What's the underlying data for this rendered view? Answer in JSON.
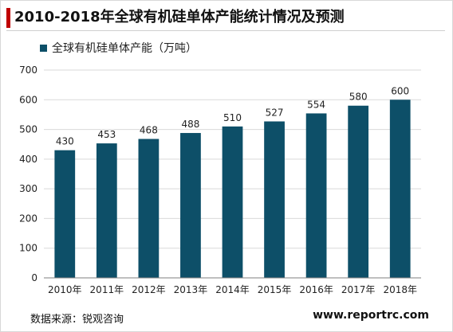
{
  "chart_data": {
    "type": "bar",
    "title": "2010-2018年全球有机硅单体产能统计情况及预测",
    "categories": [
      "2010年",
      "2011年",
      "2012年",
      "2013年",
      "2014年",
      "2015年",
      "2016年",
      "2017年",
      "2018年"
    ],
    "series": [
      {
        "name": "全球有机硅单体产能（万吨）",
        "values": [
          430,
          453,
          468,
          488,
          510,
          527,
          554,
          580,
          600
        ]
      }
    ],
    "yticks": [
      0,
      100,
      200,
      300,
      400,
      500,
      600,
      700
    ],
    "ylim": [
      0,
      700
    ],
    "grid": true,
    "legend_position": "top-left",
    "bar_color": "#0d4f68"
  },
  "footer": {
    "source": "数据来源：锐观咨询",
    "url": "www.reportrc.com"
  },
  "colors": {
    "accent": "#c00000",
    "gridline": "#d9d9d9",
    "axis": "#7f7f7f"
  }
}
